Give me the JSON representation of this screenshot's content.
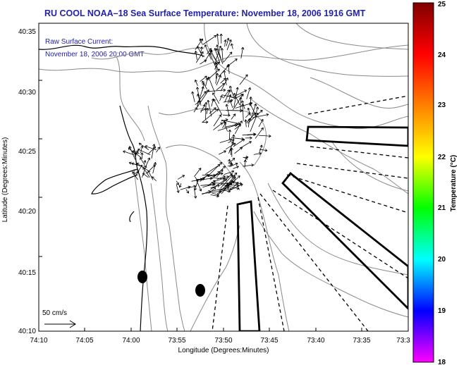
{
  "title": "RU COOL  NOAA–18  Sea Surface Temperature:  November 18, 2006 1916 GMT",
  "subtitle": {
    "line1": "Raw Surface Current:",
    "line2": "November 18, 2006 20:00 GMT"
  },
  "axes": {
    "xlabel": "Longitude (Degrees:Minutes)",
    "ylabel": "Latitude (Degrees:Minutes)",
    "xticks": [
      "74:10",
      "74:05",
      "74:00",
      "73:55",
      "73:50",
      "73:45",
      "73:40",
      "73:35",
      "73:3"
    ],
    "yticks": [
      "40:35",
      "40:30",
      "40:25",
      "40:20",
      "40:15",
      "40:10"
    ]
  },
  "scale": {
    "label": "50 cm/s"
  },
  "colorbar": {
    "label": "Temperature (°C)",
    "ticks": [
      "25",
      "24",
      "23",
      "22",
      "21",
      "20",
      "19",
      "18"
    ],
    "colors": [
      "#ff00ff",
      "#0000ff",
      "#00ffff",
      "#00ff00",
      "#ffff00",
      "#ff8000",
      "#ff0000",
      "#800000"
    ]
  },
  "map": {
    "coastline_color": "#000000",
    "contour_color": "#888888",
    "vector_color": "#000000"
  }
}
